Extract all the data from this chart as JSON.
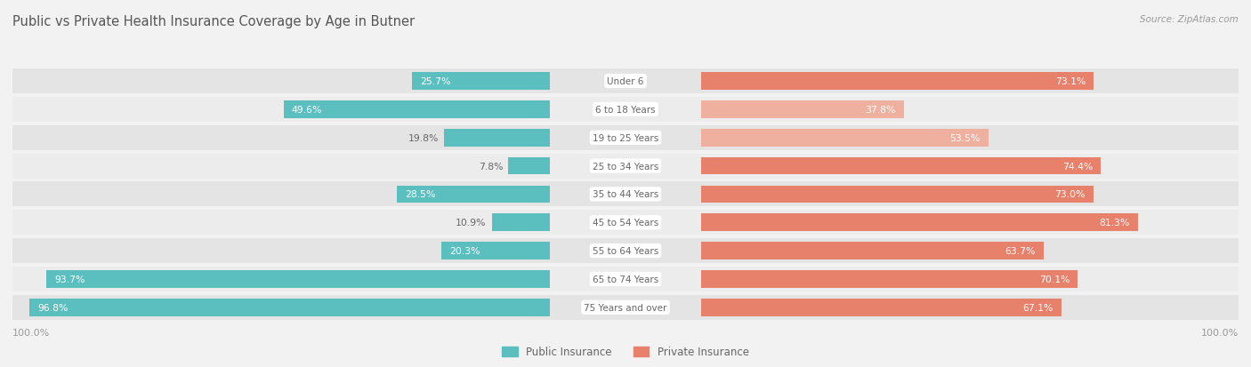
{
  "title": "Public vs Private Health Insurance Coverage by Age in Butner",
  "source": "Source: ZipAtlas.com",
  "categories": [
    "Under 6",
    "6 to 18 Years",
    "19 to 25 Years",
    "25 to 34 Years",
    "35 to 44 Years",
    "45 to 54 Years",
    "55 to 64 Years",
    "65 to 74 Years",
    "75 Years and over"
  ],
  "public_values": [
    25.7,
    49.6,
    19.8,
    7.8,
    28.5,
    10.9,
    20.3,
    93.7,
    96.8
  ],
  "private_values": [
    73.1,
    37.8,
    53.5,
    74.4,
    73.0,
    81.3,
    63.7,
    70.1,
    67.1
  ],
  "public_color": "#5bbfbf",
  "private_color_strong": "#e8816b",
  "private_color_weak": "#f0b0a0",
  "bg_color": "#f2f2f2",
  "row_bg_color": "#e8e8e8",
  "title_color": "#555555",
  "label_white": "#ffffff",
  "label_dark": "#666666",
  "axis_label_color": "#999999",
  "bar_height": 0.62,
  "figsize": [
    14.06,
    4.14
  ],
  "dpi": 100,
  "private_color_thresholds": [
    50,
    50,
    50,
    50,
    50,
    50,
    50,
    50,
    50
  ],
  "private_strong_indices": [
    0,
    3,
    4,
    5,
    6,
    7,
    8
  ],
  "private_weak_indices": [
    1,
    2
  ]
}
